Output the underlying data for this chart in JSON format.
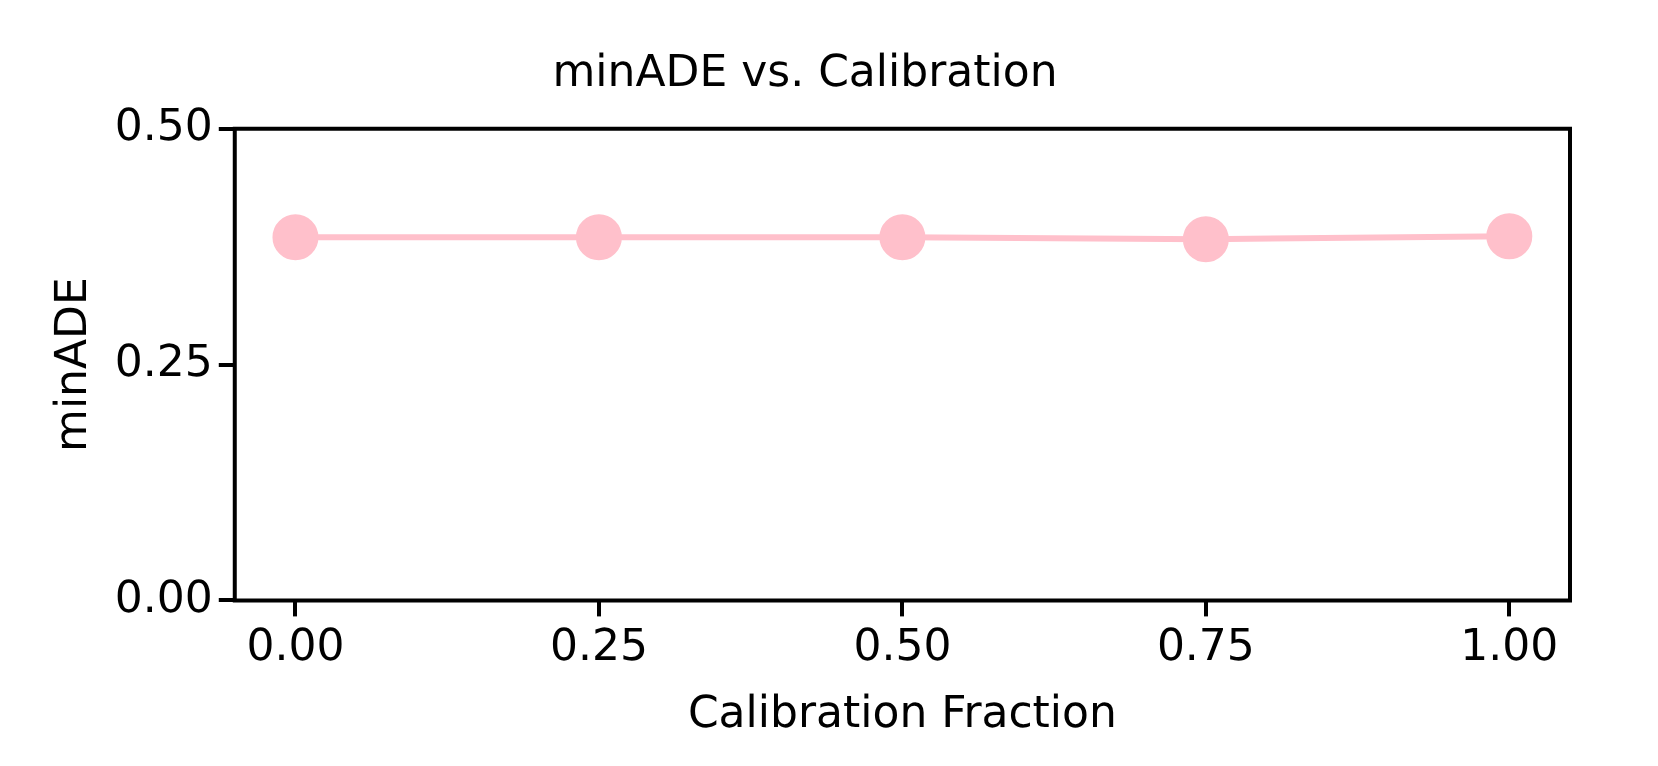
{
  "chart_data": {
    "type": "line",
    "title": "minADE vs. Calibration",
    "xlabel": "Calibration Fraction",
    "ylabel": "minADE",
    "x": [
      0,
      0.25,
      0.5,
      0.75,
      1
    ],
    "series": [
      {
        "color": "#ffc0cb",
        "values": [
          0.385,
          0.385,
          0.385,
          0.383,
          0.386
        ]
      }
    ],
    "xlim": [
      -0.05,
      1.05
    ],
    "xticks": [
      {
        "value": 0,
        "label": "0.00"
      },
      {
        "value": 0.25,
        "label": "0.25"
      },
      {
        "value": 0.5,
        "label": "0.50"
      },
      {
        "value": 0.75,
        "label": "0.75"
      },
      {
        "value": 1,
        "label": "1.00"
      }
    ],
    "ylim": [
      0,
      0.5
    ],
    "yticks": [
      {
        "value": 0,
        "label": "0.00"
      },
      {
        "value": 0.25,
        "label": "0.25"
      },
      {
        "value": 0.5,
        "label": "0.50"
      }
    ],
    "marker": "circle",
    "line_style": "solid",
    "grid": false,
    "legend": false
  }
}
